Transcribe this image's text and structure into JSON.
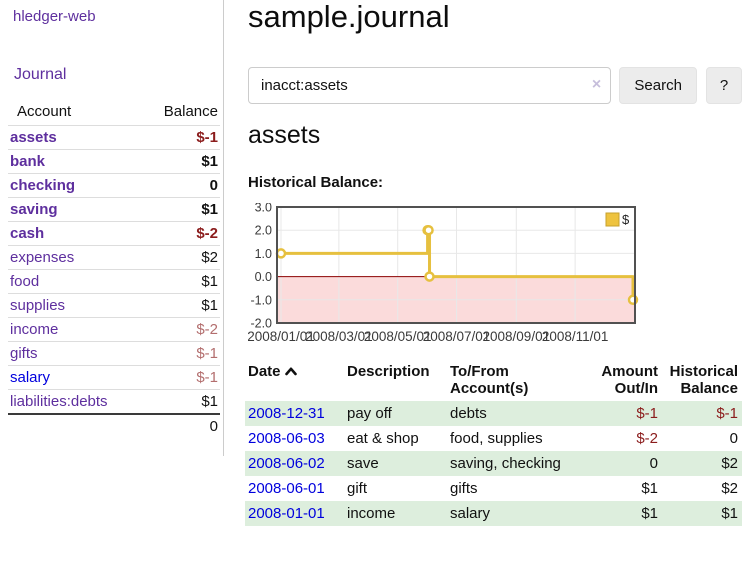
{
  "colors": {
    "link_purple": "#5e2f9e",
    "link_blue": "#0000dd",
    "negative_dark": "#8b1c1c",
    "negative_light": "#b36e6e",
    "row_green": "#ddeedd",
    "chart_line_gold": "#e6c03f",
    "chart_negative_pink": "#fbdbdb",
    "chart_zero_line": "#8b0000",
    "button_gray": "#ececec"
  },
  "sidebar": {
    "brand": "hledger-web",
    "journal_link": "Journal",
    "accounts": {
      "headers": {
        "account": "Account",
        "balance": "Balance"
      },
      "rows": [
        {
          "name": "assets",
          "balance": "$-1"
        },
        {
          "name": "bank",
          "balance": "$1"
        },
        {
          "name": "checking",
          "balance": "0"
        },
        {
          "name": "saving",
          "balance": "$1"
        },
        {
          "name": "cash",
          "balance": "$-2"
        },
        {
          "name": "expenses",
          "balance": "$2"
        },
        {
          "name": "food",
          "balance": "$1"
        },
        {
          "name": "supplies",
          "balance": "$1"
        },
        {
          "name": "income",
          "balance": "$-2"
        },
        {
          "name": "gifts",
          "balance": "$-1"
        },
        {
          "name": "salary",
          "balance": "$-1"
        },
        {
          "name": "liabilities:debts",
          "balance": "$1"
        }
      ],
      "total": "0"
    }
  },
  "main": {
    "title": "sample.journal",
    "search": {
      "value": "inacct:assets",
      "clear": "×",
      "button": "Search",
      "help": "?"
    },
    "account_heading": "assets",
    "chart_label": "Historical Balance:"
  },
  "chart_data": {
    "type": "line",
    "title": "Historical Balance",
    "legend": "$",
    "style": "step",
    "ylim": [
      -2.0,
      3.0
    ],
    "y_ticks": [
      {
        "v": 3,
        "label": "3.0"
      },
      {
        "v": 2,
        "label": "2.0"
      },
      {
        "v": 1,
        "label": "1.0"
      },
      {
        "v": 0,
        "label": "0.0"
      },
      {
        "v": -1,
        "label": "-1.0"
      },
      {
        "v": -2,
        "label": "-2.0"
      }
    ],
    "x_max_days": 365,
    "x_ticks": [
      {
        "d": 0,
        "label": "2008/01/01"
      },
      {
        "d": 60,
        "label": "2008/03/01"
      },
      {
        "d": 121,
        "label": "2008/05/01"
      },
      {
        "d": 182,
        "label": "2008/07/01"
      },
      {
        "d": 244,
        "label": "2008/09/01"
      },
      {
        "d": 305,
        "label": "2008/11/01"
      }
    ],
    "points": [
      {
        "date": "2008-01-01",
        "d": 0,
        "v": 1
      },
      {
        "date": "2008-06-01",
        "d": 152,
        "v": 2
      },
      {
        "date": "2008-06-02",
        "d": 153,
        "v": 2
      },
      {
        "date": "2008-06-03",
        "d": 154,
        "v": 0
      },
      {
        "date": "2008-12-31",
        "d": 365,
        "v": -1
      }
    ]
  },
  "register": {
    "headers": {
      "date": "Date",
      "description": "Description",
      "accounts": "To/From Account(s)",
      "amount": "Amount Out/In",
      "balance": "Historical Balance"
    },
    "rows": [
      {
        "date": "2008-12-31",
        "description": "pay off",
        "accounts": "debts",
        "amount": "$-1",
        "balance": "$-1"
      },
      {
        "date": "2008-06-03",
        "description": "eat & shop",
        "accounts": "food, supplies",
        "amount": "$-2",
        "balance": "0"
      },
      {
        "date": "2008-06-02",
        "description": "save",
        "accounts": "saving, checking",
        "amount": "0",
        "balance": "$2"
      },
      {
        "date": "2008-06-01",
        "description": "gift",
        "accounts": "gifts",
        "amount": "$1",
        "balance": "$2"
      },
      {
        "date": "2008-01-01",
        "description": "income",
        "accounts": "salary",
        "amount": "$1",
        "balance": "$1"
      }
    ]
  }
}
